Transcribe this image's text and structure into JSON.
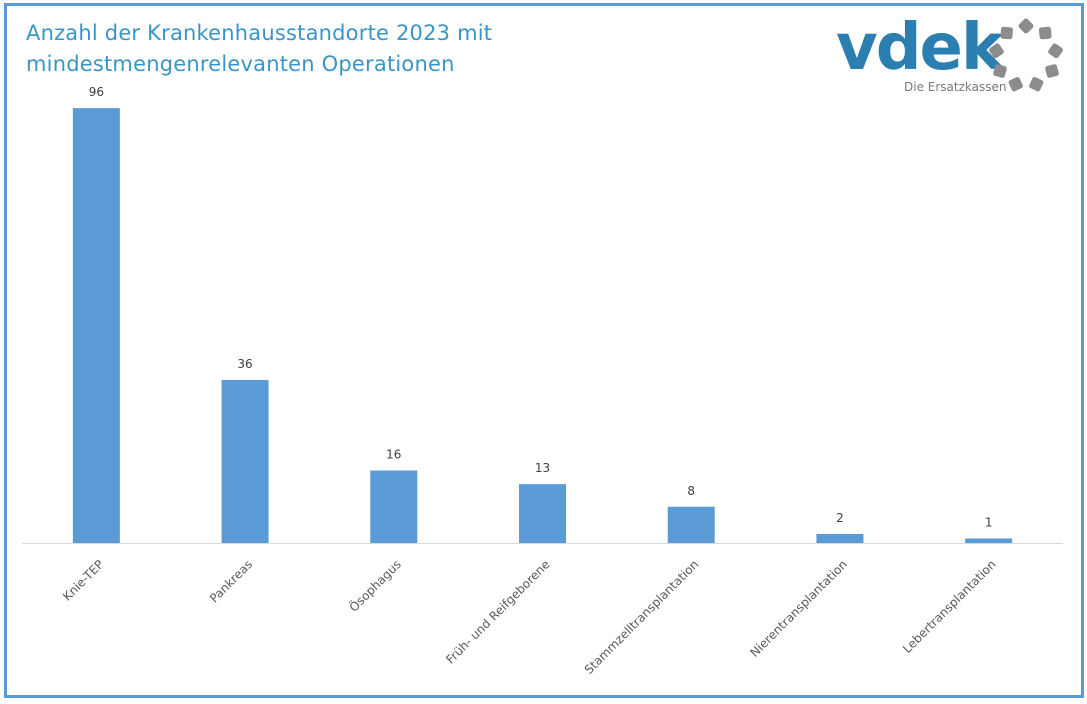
{
  "title_line1": "Anzahl der Krankenhausstandorte 2023 mit",
  "title_line2": "mindestmengenrelevanten Operationen",
  "logo": {
    "wordmark": "vdek",
    "tagline": "Die Ersatzkassen",
    "icon": "vdek-ring-logo"
  },
  "colors": {
    "bar": "#5b9bd5",
    "title": "#3a94c6",
    "frame": "#5b9bd5"
  },
  "chart_data": {
    "type": "bar",
    "title": "Anzahl der Krankenhausstandorte 2023 mit mindestmengenrelevanten Operationen",
    "categories": [
      "Knie-TEP",
      "Pankreas",
      "Ösophagus",
      "Früh- und Reifgeborene",
      "Stammzelltransplantation",
      "Nierentransplantation",
      "Lebertransplantation"
    ],
    "values": [
      96,
      36,
      16,
      13,
      8,
      2,
      1
    ],
    "xlabel": "",
    "ylabel": "",
    "ylim": [
      0,
      100
    ],
    "grid": false,
    "data_labels": true,
    "legend": "none"
  }
}
